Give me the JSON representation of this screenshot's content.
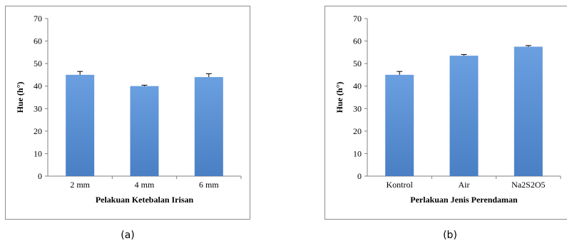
{
  "chart_data": [
    {
      "type": "bar",
      "title": "",
      "xlabel": "Pelakuan Ketebalan Irisan",
      "ylabel": "Hue (h°)",
      "ylim": [
        0,
        70
      ],
      "yticks": [
        0,
        10,
        20,
        30,
        40,
        50,
        60,
        70
      ],
      "categories": [
        "2 mm",
        "4 mm",
        "6 mm"
      ],
      "values": [
        45,
        40,
        44
      ],
      "errors": [
        1.5,
        0.4,
        1.5
      ],
      "grid": false,
      "bar_color": "#5b8fd0"
    },
    {
      "type": "bar",
      "title": "",
      "xlabel": "Perlakuan Jenis Perendaman",
      "ylabel": "Hue (h°)",
      "ylim": [
        0,
        70
      ],
      "yticks": [
        0,
        10,
        20,
        30,
        40,
        50,
        60,
        70
      ],
      "categories": [
        "Kontrol",
        "Air",
        "Na2S2O5"
      ],
      "values": [
        45,
        53.5,
        57.5
      ],
      "errors": [
        1.5,
        0.5,
        0.5
      ],
      "grid": false,
      "bar_color": "#5b8fd0"
    }
  ],
  "captions": [
    "(a)",
    "(b)"
  ]
}
